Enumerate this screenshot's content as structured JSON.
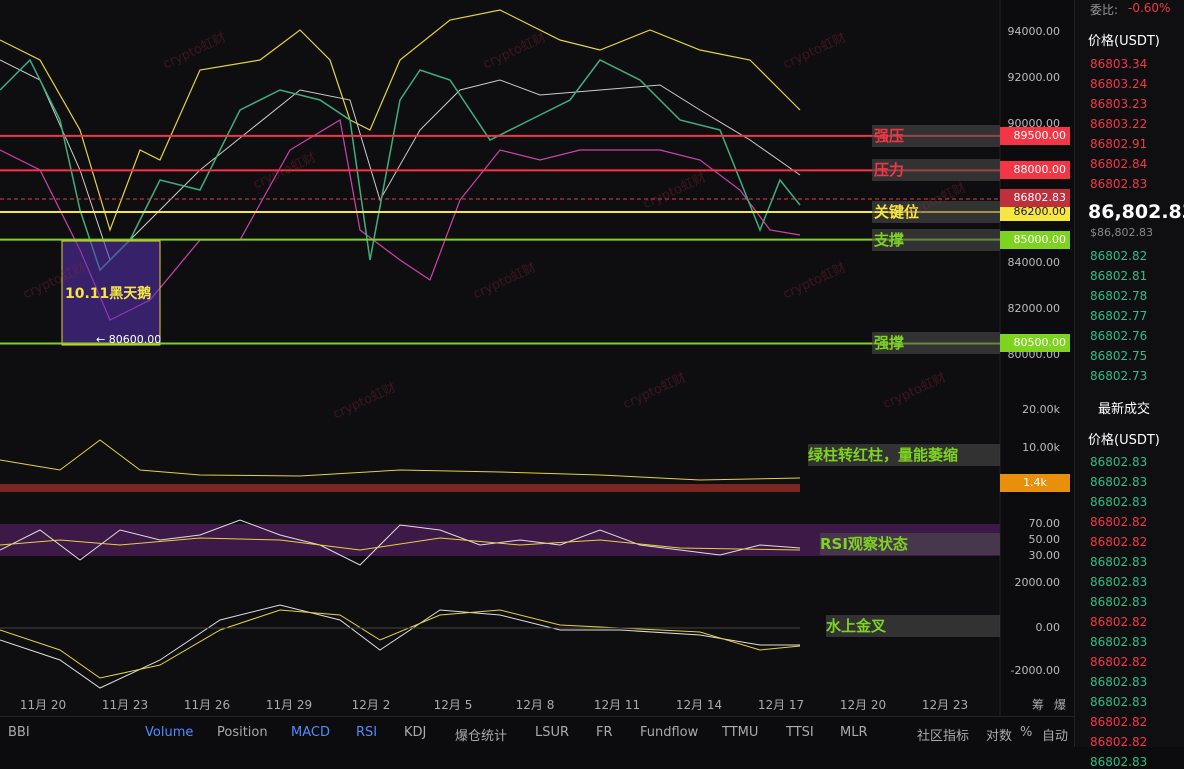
{
  "chart": {
    "price_ticks": [
      "94000.00",
      "92000.00",
      "90000.00",
      "84000.00",
      "82000.00",
      "80000.00"
    ],
    "levels": [
      {
        "name": "强压",
        "label": "89500.00",
        "color": "#f23645"
      },
      {
        "name": "压力",
        "label": "88000.00",
        "color": "#f23645"
      },
      {
        "name": "关键位",
        "label": "86200.00",
        "color": "#f5e642"
      },
      {
        "name": "支撑",
        "label": "85000.00",
        "color": "#7ed321"
      },
      {
        "name": "强撑",
        "label": "80500.00",
        "color": "#7ed321"
      }
    ],
    "last_price": "86802.83",
    "black_swan": {
      "title": "10.11黑天鹅",
      "low": "← 80600.00"
    },
    "volume_ticks": [
      "20.00k",
      "10.00k"
    ],
    "volume_current": "1.4k",
    "volume_note": "绿柱转红柱，量能萎缩",
    "rsi_ticks": [
      "70.00",
      "50.00",
      "30.00"
    ],
    "rsi_note": "RSI观察状态",
    "macd_ticks": [
      "2000.00",
      "0.00",
      "-2000.00"
    ],
    "macd_note": "水上金叉",
    "dates": [
      "11月 20",
      "11月 23",
      "11月 26",
      "11月 29",
      "12月 2",
      "12月 5",
      "12月 8",
      "12月 11",
      "12月 14",
      "12月 17",
      "12月 20",
      "12月 23"
    ],
    "side_icons": [
      "筹",
      "爆"
    ],
    "watermark": "crypto虹财"
  },
  "toolbar": [
    "BBI",
    "Volume",
    "Position",
    "MACD",
    "RSI",
    "KDJ",
    "爆仓统计",
    "LSUR",
    "FR",
    "Fundflow",
    "TTMU",
    "TTSI",
    "MLR",
    "社区指标",
    "对数",
    "%",
    "自动"
  ],
  "orderbook": {
    "ratio_label": "委比:",
    "ratio": "-0.60%",
    "header": "价格(USDT)",
    "asks": [
      "86803.34",
      "86803.24",
      "86803.23",
      "86803.22",
      "86802.91",
      "86802.84",
      "86802.83"
    ],
    "last": "86,802.83",
    "last_usd": "$86,802.83",
    "bids": [
      "86802.82",
      "86802.81",
      "86802.78",
      "86802.77",
      "86802.76",
      "86802.75",
      "86802.73"
    ]
  },
  "trades": {
    "title": "最新成交",
    "header": "价格(USDT)",
    "rows": [
      {
        "price": "86802.83",
        "color": "#2ebd85"
      },
      {
        "price": "86802.83",
        "color": "#2ebd85"
      },
      {
        "price": "86802.83",
        "color": "#2ebd85"
      },
      {
        "price": "86802.82",
        "color": "#f23645"
      },
      {
        "price": "86802.82",
        "color": "#f23645"
      },
      {
        "price": "86802.83",
        "color": "#2ebd85"
      },
      {
        "price": "86802.83",
        "color": "#2ebd85"
      },
      {
        "price": "86802.83",
        "color": "#2ebd85"
      },
      {
        "price": "86802.82",
        "color": "#f23645"
      },
      {
        "price": "86802.83",
        "color": "#2ebd85"
      },
      {
        "price": "86802.82",
        "color": "#f23645"
      },
      {
        "price": "86802.83",
        "color": "#2ebd85"
      },
      {
        "price": "86802.83",
        "color": "#2ebd85"
      },
      {
        "price": "86802.82",
        "color": "#f23645"
      },
      {
        "price": "86802.82",
        "color": "#f23645"
      },
      {
        "price": "86802.83",
        "color": "#2ebd85"
      }
    ]
  }
}
